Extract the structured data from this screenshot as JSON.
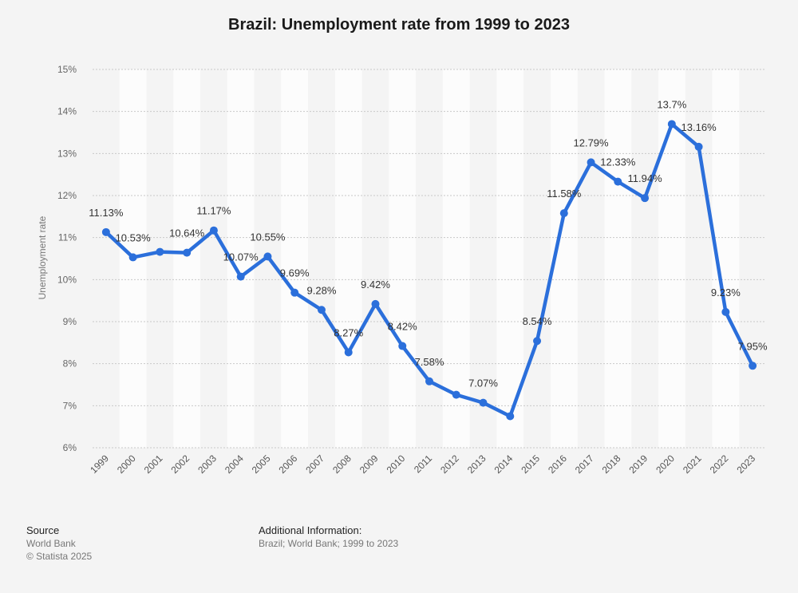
{
  "chart_data": {
    "type": "line",
    "title": "Brazil: Unemployment rate from 1999 to 2023",
    "ylabel": "Unemployment rate",
    "xlabel": "",
    "ylim": [
      6,
      15
    ],
    "y_ticks": [
      6,
      7,
      8,
      9,
      10,
      11,
      12,
      13,
      14,
      15
    ],
    "y_tick_suffix": "%",
    "grid": true,
    "line_color": "#2b6fdb",
    "x": [
      "1999",
      "2000",
      "2001",
      "2002",
      "2003",
      "2004",
      "2005",
      "2006",
      "2007",
      "2008",
      "2009",
      "2010",
      "2011",
      "2012",
      "2013",
      "2014",
      "2015",
      "2016",
      "2017",
      "2018",
      "2019",
      "2020",
      "2021",
      "2022",
      "2023"
    ],
    "values": [
      11.13,
      10.53,
      10.66,
      10.64,
      11.17,
      10.07,
      10.55,
      9.69,
      9.28,
      8.27,
      9.42,
      8.42,
      7.58,
      7.26,
      7.07,
      6.75,
      8.54,
      11.58,
      12.79,
      12.33,
      11.94,
      13.7,
      13.16,
      9.23,
      7.95
    ],
    "labels": [
      "11.13%",
      "10.53%",
      "",
      "10.64%",
      "11.17%",
      "10.07%",
      "10.55%",
      "9.69%",
      "9.28%",
      "8.27%",
      "9.42%",
      "8.42%",
      "7.58%",
      "",
      "7.07%",
      "",
      "8.54%",
      "11.58%",
      "12.79%",
      "12.33%",
      "11.94%",
      "13.7%",
      "13.16%",
      "9.23%",
      "7.95%"
    ]
  },
  "footer": {
    "source_heading": "Source",
    "source_line1": "World Bank",
    "source_line2": "© Statista 2025",
    "info_heading": "Additional Information:",
    "info_line": "Brazil; World Bank; 1999 to 2023"
  }
}
